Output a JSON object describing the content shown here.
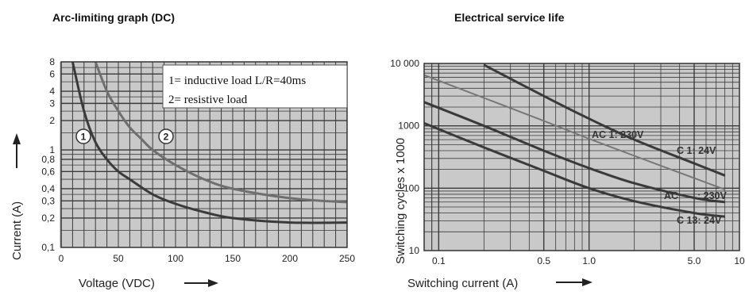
{
  "chart_data": [
    {
      "type": "line",
      "title": "Arc-limiting graph (DC)",
      "xlabel": "Voltage (VDC)",
      "ylabel": "Current (A)",
      "xlim": [
        0,
        250
      ],
      "ylim": [
        0.1,
        8
      ],
      "yscale": "log",
      "grid": true,
      "x_ticks": [
        0,
        50,
        100,
        150,
        200,
        250
      ],
      "y_ticks": [
        0.1,
        0.2,
        0.3,
        0.4,
        0.6,
        0.8,
        1,
        2,
        3,
        4,
        6,
        8
      ],
      "y_tick_labels": [
        "0,1",
        "0,2",
        "0,3",
        "0,4",
        "0,6",
        "0,8",
        "1",
        "2",
        "3",
        "4",
        "6",
        "8"
      ],
      "legend_lines": [
        "1= inductive load L/R=40ms",
        "2= resistive load"
      ],
      "series": [
        {
          "name": "1",
          "x": [
            10,
            20,
            30,
            40,
            50,
            60,
            80,
            100,
            125,
            150,
            200,
            250
          ],
          "values": [
            8,
            2.5,
            1.2,
            0.8,
            0.6,
            0.5,
            0.35,
            0.28,
            0.23,
            0.2,
            0.18,
            0.18
          ]
        },
        {
          "name": "2",
          "x": [
            30,
            40,
            50,
            60,
            70,
            80,
            100,
            125,
            150,
            200,
            250
          ],
          "values": [
            8,
            4,
            2.5,
            1.7,
            1.3,
            1.0,
            0.7,
            0.5,
            0.4,
            0.32,
            0.29
          ]
        }
      ]
    },
    {
      "type": "line",
      "title": "Electrical service life",
      "xlabel": "Switching current (A)",
      "ylabel": "Switching cycles x 1000",
      "xscale": "log",
      "yscale": "log",
      "xlim": [
        0.08,
        10
      ],
      "ylim": [
        10,
        10000
      ],
      "grid": true,
      "x_ticks": [
        0.1,
        0.5,
        1.0,
        5.0,
        10
      ],
      "x_tick_labels": [
        "0.1",
        "0.5",
        "1.0",
        "5.0",
        "10"
      ],
      "y_ticks": [
        10,
        100,
        1000,
        10000
      ],
      "y_tick_labels": [
        "10",
        "100",
        "1000",
        "10 000"
      ],
      "series": [
        {
          "name": "AC 1: 230V",
          "x": [
            0.08,
            0.2,
            0.5,
            1.0,
            2.0,
            5.0,
            8.0
          ],
          "values": [
            6500,
            2800,
            1200,
            620,
            330,
            145,
            95
          ]
        },
        {
          "name": "C 1: 24V",
          "x": [
            0.2,
            0.5,
            1.0,
            2.0,
            5.0,
            8.0
          ],
          "values": [
            9500,
            3000,
            1300,
            600,
            250,
            160
          ]
        },
        {
          "name": "AC : 230V",
          "x": [
            0.08,
            0.2,
            0.5,
            1.0,
            2.0,
            5.0,
            8.0
          ],
          "values": [
            2400,
            1000,
            400,
            210,
            120,
            70,
            60
          ]
        },
        {
          "name": "C 13: 24V",
          "x": [
            0.08,
            0.2,
            0.5,
            1.0,
            2.0,
            5.0,
            8.0
          ],
          "values": [
            1100,
            450,
            190,
            100,
            62,
            40,
            35
          ]
        }
      ],
      "annotations": [
        "AC 1: 230V",
        "C 1: 24V",
        "AC",
        ": 230V",
        "C 13: 24V"
      ]
    }
  ]
}
